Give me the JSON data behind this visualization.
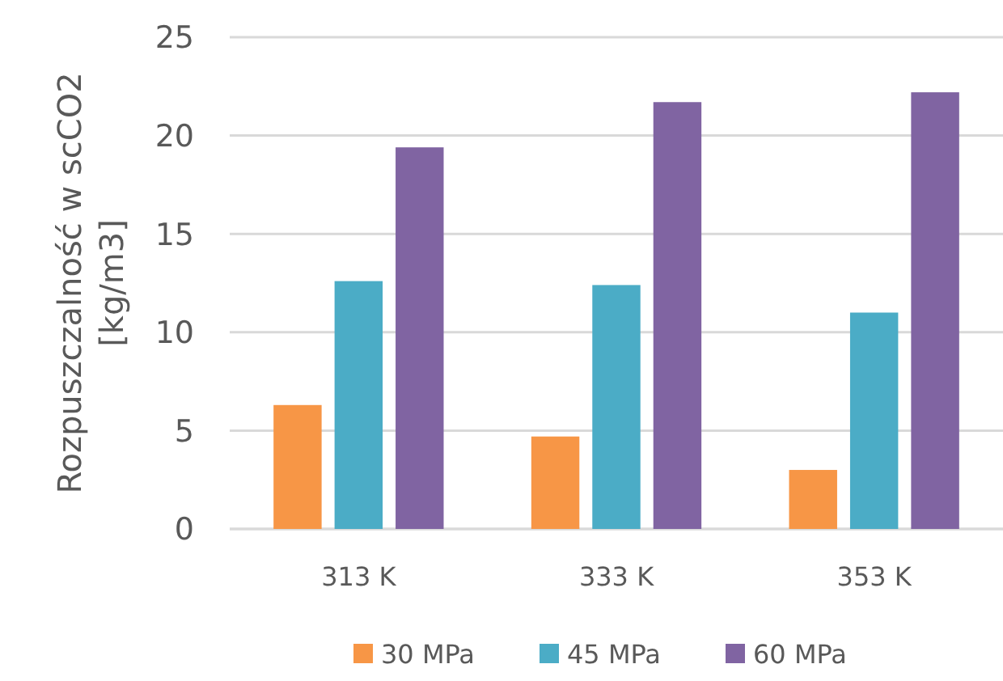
{
  "chart_data": {
    "type": "bar",
    "ylabel": "Rozpuszczalność w scCO2\n[kg/m3]",
    "categories": [
      "313 K",
      "333 K",
      "353 K"
    ],
    "series": [
      {
        "name": "30 MPa",
        "color": "#f79646",
        "values": [
          6.3,
          4.7,
          3.0
        ]
      },
      {
        "name": "45 MPa",
        "color": "#4bacc6",
        "values": [
          12.6,
          12.4,
          11.0
        ]
      },
      {
        "name": "60 MPa",
        "color": "#8064a2",
        "values": [
          19.4,
          21.7,
          22.2
        ]
      }
    ],
    "ylim": [
      0,
      25
    ],
    "yticks": [
      0,
      5,
      10,
      15,
      20,
      25
    ],
    "grid": "y",
    "legend": "bottom"
  }
}
